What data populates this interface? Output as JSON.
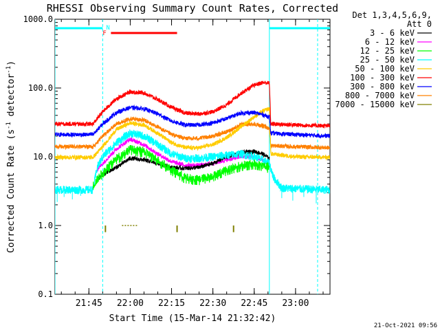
{
  "chart_data": {
    "type": "line",
    "title": "RHESSI Observing Summary Count Rates, Corrected",
    "xlabel": "Start Time (15-Mar-14 21:32:42)",
    "ylabel": "Corrected Count Rate (s⁻¹ detector⁻¹)",
    "ylabel_parts": {
      "main": "Corrected Count Rate (s",
      "sup1": "-1",
      "mid": " detector",
      "sup2": "-1",
      "end": ")"
    },
    "y_scale": "log",
    "ylim": [
      0.1,
      1000
    ],
    "y_ticks": [
      {
        "value": 0.1,
        "label": "0.1"
      },
      {
        "value": 1,
        "label": "1.0"
      },
      {
        "value": 10,
        "label": "10.0"
      },
      {
        "value": 100,
        "label": "100.0"
      },
      {
        "value": 1000,
        "label": "1000.0"
      }
    ],
    "xlim": [
      "21:32:42",
      "23:12:30"
    ],
    "x_ticks": [
      {
        "value": "21:45",
        "label": "21:45"
      },
      {
        "value": "22:00",
        "label": "22:00"
      },
      {
        "value": "22:15",
        "label": "22:15"
      },
      {
        "value": "22:30",
        "label": "22:30"
      },
      {
        "value": "22:45",
        "label": "22:45"
      },
      {
        "value": "23:00",
        "label": "23:00"
      }
    ],
    "legend": {
      "placement": "right",
      "header1": "Det 1,3,4,5,6,9,",
      "header2": "Att 0"
    },
    "flags": {
      "night": {
        "label": "N",
        "color": "#00ffff",
        "intervals": [
          [
            "21:32:42",
            "21:50:00"
          ],
          [
            "22:50:30",
            "23:12:30"
          ]
        ]
      },
      "flare": {
        "label": "F",
        "color": "#ff0000",
        "intervals": [
          [
            "21:53:00",
            "22:17:00"
          ]
        ]
      }
    },
    "night_boundaries": [
      "21:32:42",
      "22:50:30"
    ],
    "day_boundaries": [
      "21:50:00",
      "23:08:00"
    ],
    "series": [
      {
        "name": "3 - 6 keV",
        "color": "#000000",
        "points": [
          [
            "21:48:00",
            4.5
          ],
          [
            "21:50:00",
            5.5
          ],
          [
            "21:55:00",
            7
          ],
          [
            "22:00:00",
            9.5
          ],
          [
            "22:05:00",
            9
          ],
          [
            "22:10:00",
            8
          ],
          [
            "22:15:00",
            7
          ],
          [
            "22:20:00",
            6.8
          ],
          [
            "22:25:00",
            7
          ],
          [
            "22:30:00",
            8
          ],
          [
            "22:35:00",
            10
          ],
          [
            "22:40:00",
            11.5
          ],
          [
            "22:45:00",
            12
          ],
          [
            "22:48:00",
            11
          ],
          [
            "22:50:30",
            9.5
          ]
        ]
      },
      {
        "name": "6 - 12 keV",
        "color": "#ff00ff",
        "points": [
          [
            "21:48:00",
            6.5
          ],
          [
            "21:50:00",
            8
          ],
          [
            "21:55:00",
            13
          ],
          [
            "22:00:00",
            18
          ],
          [
            "22:05:00",
            15
          ],
          [
            "22:10:00",
            11
          ],
          [
            "22:15:00",
            8.5
          ],
          [
            "22:20:00",
            7.5
          ],
          [
            "22:25:00",
            7.5
          ],
          [
            "22:30:00",
            8
          ],
          [
            "22:35:00",
            9
          ],
          [
            "22:40:00",
            10
          ],
          [
            "22:45:00",
            10
          ],
          [
            "22:48:00",
            9
          ],
          [
            "22:50:30",
            7.5
          ]
        ]
      },
      {
        "name": "12 - 25 keV",
        "color": "#00ff00",
        "points": [
          [
            "21:46:30",
            3.8
          ],
          [
            "21:50:00",
            6
          ],
          [
            "21:55:00",
            9.5
          ],
          [
            "22:00:00",
            13
          ],
          [
            "22:05:00",
            12
          ],
          [
            "22:10:00",
            9
          ],
          [
            "22:15:00",
            6.5
          ],
          [
            "22:20:00",
            5
          ],
          [
            "22:25:00",
            4.7
          ],
          [
            "22:30:00",
            5.3
          ],
          [
            "22:35:00",
            6.5
          ],
          [
            "22:40:00",
            7.5
          ],
          [
            "22:45:00",
            8
          ],
          [
            "22:48:00",
            7.5
          ],
          [
            "22:50:30",
            7
          ]
        ]
      },
      {
        "name": "25 - 50 keV",
        "color": "#00ffff",
        "points": [
          [
            "21:32:42",
            3.3
          ],
          [
            "21:46:30",
            3.3
          ],
          [
            "21:48:00",
            7
          ],
          [
            "21:50:00",
            10
          ],
          [
            "21:55:00",
            16
          ],
          [
            "22:00:00",
            22
          ],
          [
            "22:05:00",
            20
          ],
          [
            "22:10:00",
            15
          ],
          [
            "22:15:00",
            11
          ],
          [
            "22:20:00",
            9.5
          ],
          [
            "22:25:00",
            9.5
          ],
          [
            "22:30:00",
            10
          ],
          [
            "22:35:00",
            10.5
          ],
          [
            "22:40:00",
            11
          ],
          [
            "22:45:00",
            10
          ],
          [
            "22:48:00",
            9
          ],
          [
            "22:50:30",
            8
          ],
          [
            "22:52:00",
            5
          ],
          [
            "22:55:00",
            3.5
          ],
          [
            "23:10:00",
            3.3
          ],
          [
            "23:12:30",
            3.3
          ]
        ]
      },
      {
        "name": "50 - 100 keV",
        "color": "#ffcc00",
        "points": [
          [
            "21:32:42",
            9.8
          ],
          [
            "21:46:30",
            9.8
          ],
          [
            "21:50:00",
            14
          ],
          [
            "21:55:00",
            25
          ],
          [
            "22:00:00",
            31
          ],
          [
            "22:05:00",
            29
          ],
          [
            "22:10:00",
            22
          ],
          [
            "22:15:00",
            16
          ],
          [
            "22:20:00",
            13.5
          ],
          [
            "22:25:00",
            13.5
          ],
          [
            "22:30:00",
            15
          ],
          [
            "22:35:00",
            19
          ],
          [
            "22:40:00",
            27
          ],
          [
            "22:45:00",
            38
          ],
          [
            "22:48:00",
            46
          ],
          [
            "22:50:30",
            50
          ],
          [
            "22:51:00",
            11
          ],
          [
            "23:00:00",
            10
          ],
          [
            "23:12:30",
            9.8
          ]
        ]
      },
      {
        "name": "100 - 300 keV",
        "color": "#ff0000",
        "points": [
          [
            "21:32:42",
            30
          ],
          [
            "21:46:30",
            30
          ],
          [
            "21:50:00",
            45
          ],
          [
            "21:55:00",
            70
          ],
          [
            "22:00:00",
            88
          ],
          [
            "22:05:00",
            85
          ],
          [
            "22:10:00",
            68
          ],
          [
            "22:15:00",
            52
          ],
          [
            "22:20:00",
            43
          ],
          [
            "22:25:00",
            42
          ],
          [
            "22:30:00",
            45
          ],
          [
            "22:35:00",
            57
          ],
          [
            "22:40:00",
            83
          ],
          [
            "22:45:00",
            110
          ],
          [
            "22:48:00",
            120
          ],
          [
            "22:50:30",
            118
          ],
          [
            "22:51:00",
            30
          ],
          [
            "23:00:00",
            29
          ],
          [
            "23:12:30",
            28
          ]
        ]
      },
      {
        "name": "300 - 800 keV",
        "color": "#0000ff",
        "points": [
          [
            "21:32:42",
            21
          ],
          [
            "21:46:30",
            21
          ],
          [
            "21:50:00",
            30
          ],
          [
            "21:55:00",
            44
          ],
          [
            "22:00:00",
            52
          ],
          [
            "22:05:00",
            50
          ],
          [
            "22:10:00",
            42
          ],
          [
            "22:15:00",
            33
          ],
          [
            "22:20:00",
            29
          ],
          [
            "22:25:00",
            29
          ],
          [
            "22:30:00",
            31
          ],
          [
            "22:35:00",
            36
          ],
          [
            "22:40:00",
            43
          ],
          [
            "22:45:00",
            44
          ],
          [
            "22:48:00",
            41
          ],
          [
            "22:50:30",
            38
          ],
          [
            "22:51:00",
            22
          ],
          [
            "23:00:00",
            21
          ],
          [
            "23:12:30",
            20
          ]
        ]
      },
      {
        "name": "800 - 7000 keV",
        "color": "#ff8000",
        "points": [
          [
            "21:32:42",
            14
          ],
          [
            "21:46:30",
            14
          ],
          [
            "21:50:00",
            20
          ],
          [
            "21:55:00",
            30
          ],
          [
            "22:00:00",
            36
          ],
          [
            "22:05:00",
            34
          ],
          [
            "22:10:00",
            27
          ],
          [
            "22:15:00",
            21
          ],
          [
            "22:20:00",
            18.5
          ],
          [
            "22:25:00",
            18.5
          ],
          [
            "22:30:00",
            20
          ],
          [
            "22:35:00",
            23
          ],
          [
            "22:40:00",
            29
          ],
          [
            "22:45:00",
            30
          ],
          [
            "22:48:00",
            28
          ],
          [
            "22:50:30",
            26
          ],
          [
            "22:51:00",
            14.5
          ],
          [
            "23:00:00",
            14
          ],
          [
            "23:12:30",
            13.5
          ]
        ]
      },
      {
        "name": "7000 - 15000 keV",
        "color": "#808000",
        "points": [
          [
            "21:57:00",
            1.0
          ],
          [
            "22:03:00",
            1.0
          ]
        ]
      }
    ],
    "spikes_7000_15000_keV": [
      [
        "21:51:00",
        0.8
      ],
      [
        "22:17:00",
        0.8
      ],
      [
        "22:37:30",
        0.8
      ]
    ]
  },
  "footer": {
    "timestamp": "21-Oct-2021 09:56"
  }
}
